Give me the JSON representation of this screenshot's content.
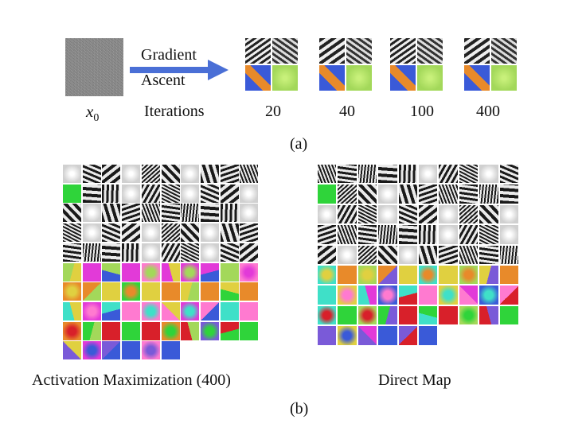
{
  "part_a": {
    "x_label": "x",
    "x_subscript": "0",
    "arrow_line1": "Gradient",
    "arrow_line2": "Ascent",
    "iterations_label": "Iterations",
    "iterations": [
      "20",
      "40",
      "100",
      "400"
    ],
    "caption": "(a)"
  },
  "part_b": {
    "left_caption": "Activation Maximization (400)",
    "right_caption": "Direct Map",
    "caption": "(b)"
  },
  "colors": {
    "arrow": "#4a6fd6",
    "gray": "#8a8a8a",
    "green": "#2fd43a",
    "yellow_green": "#a3d85a",
    "magenta": "#e23ad8",
    "cyan": "#3fe0c8",
    "blue": "#3a5ad8",
    "orange": "#e88a2a",
    "red": "#d8202a"
  }
}
